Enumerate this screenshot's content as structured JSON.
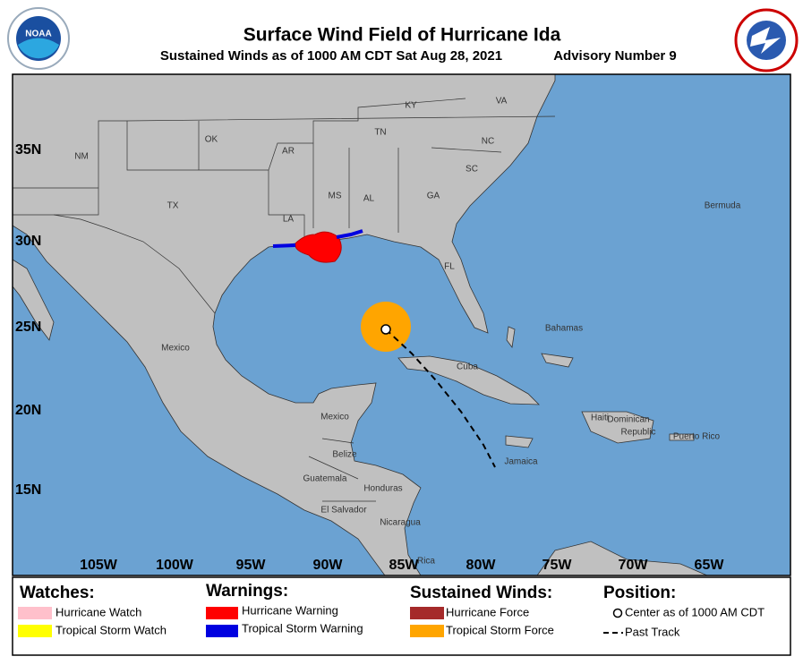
{
  "header": {
    "title": "Surface Wind Field of Hurricane Ida",
    "subtitle": "Sustained Winds as of 1000 AM CDT Sat Aug 28, 2021",
    "advisory": "Advisory Number 9",
    "logo": "NOAA"
  },
  "map": {
    "latitude_labels": [
      "35N",
      "30N",
      "25N",
      "20N",
      "15N"
    ],
    "longitude_labels": [
      "105W",
      "100W",
      "95W",
      "90W",
      "85W",
      "80W",
      "75W",
      "70W",
      "65W"
    ],
    "place_labels": [
      "KY",
      "VA",
      "OK",
      "TN",
      "NC",
      "AR",
      "NM",
      "SC",
      "MS",
      "AL",
      "GA",
      "Bermuda",
      "TX",
      "LA",
      "FL",
      "Bahamas",
      "Mexico",
      "Cuba",
      "Mexico",
      "Haiti",
      "Dominican",
      "Republic",
      "Puerto Rico",
      "Belize",
      "Jamaica",
      "Guatemala",
      "Honduras",
      "El Salvador",
      "Nicaragua",
      "Rica"
    ]
  },
  "legend": {
    "watches": {
      "title": "Watches:",
      "items": [
        "Hurricane Watch",
        "Tropical Storm Watch"
      ]
    },
    "warnings": {
      "title": "Warnings:",
      "items": [
        "Hurricane Warning",
        "Tropical Storm Warning"
      ]
    },
    "winds": {
      "title": "Sustained Winds:",
      "items": [
        "Hurricane Force",
        "Tropical Storm Force"
      ]
    },
    "position": {
      "title": "Position:",
      "items": [
        "Center as of 1000 AM CDT",
        "Past Track"
      ]
    }
  }
}
